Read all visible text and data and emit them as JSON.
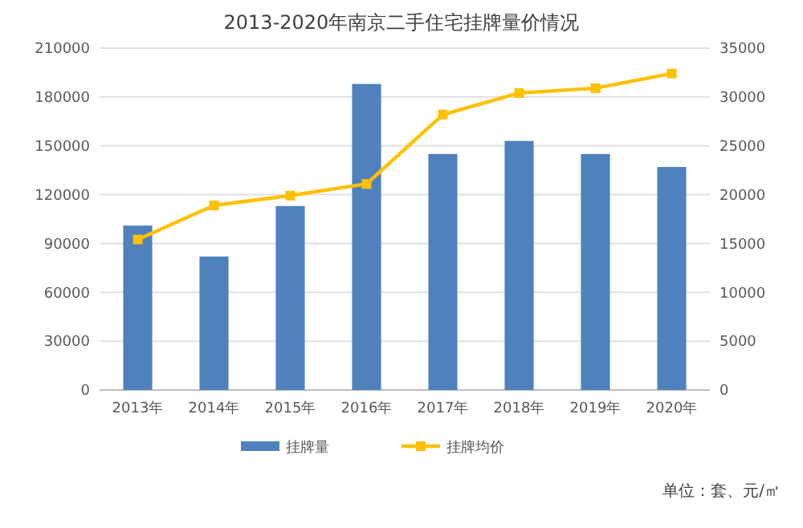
{
  "chart_data": {
    "type": "bar",
    "title": "2013-2020年南京二手住宅挂牌量价情况",
    "categories": [
      "2013年",
      "2014年",
      "2015年",
      "2016年",
      "2017年",
      "2018年",
      "2019年",
      "2020年"
    ],
    "series": [
      {
        "name": "挂牌量",
        "color": "#4f81bd",
        "values": [
          101000,
          82000,
          113000,
          188000,
          145000,
          153000,
          145000,
          137000
        ]
      },
      {
        "name": "挂牌均价",
        "type": "line",
        "axis": "y2",
        "color": "#ffc000",
        "marker": "square",
        "values": [
          15400,
          18900,
          19900,
          21100,
          28200,
          30400,
          30900,
          32400
        ]
      }
    ],
    "ylim": [
      0,
      210000
    ],
    "yticks": [
      0,
      30000,
      60000,
      90000,
      120000,
      150000,
      180000,
      210000
    ],
    "y2lim": [
      0,
      35000
    ],
    "y2ticks": [
      0,
      5000,
      10000,
      15000,
      20000,
      25000,
      30000,
      35000
    ],
    "grid": "y",
    "legend": "bottom",
    "annotations": [
      "单位：套、元/㎡"
    ]
  }
}
